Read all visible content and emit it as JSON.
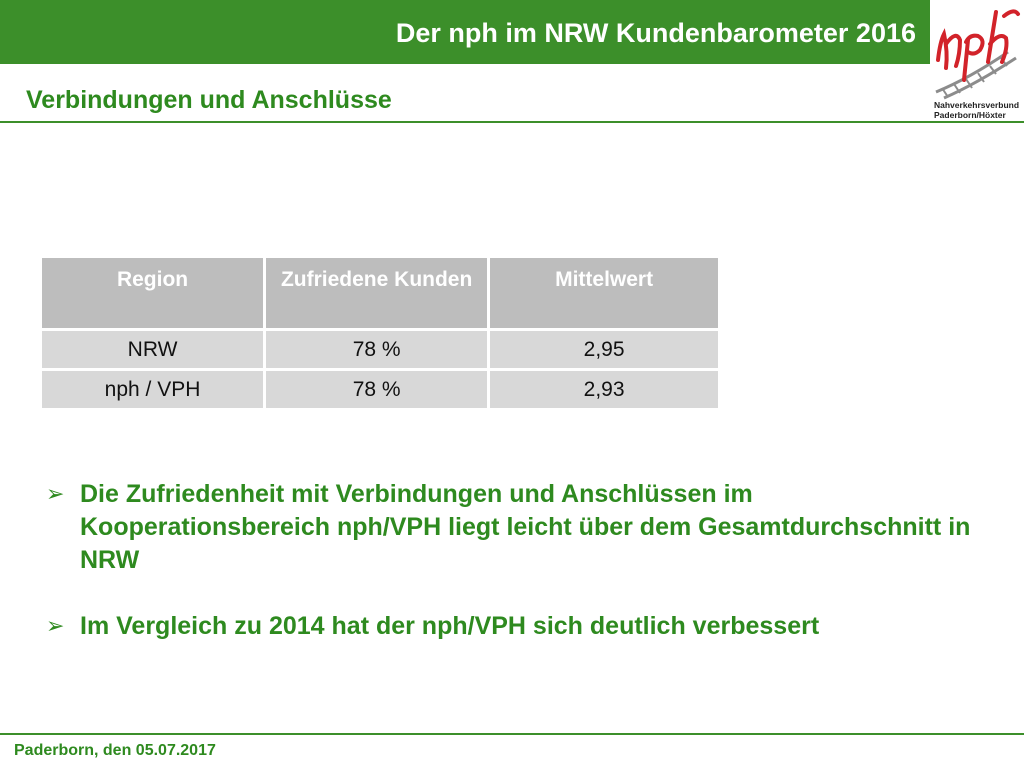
{
  "header": {
    "title": "Der nph im NRW Kundenbarometer 2016"
  },
  "logo": {
    "mark_text": "nph",
    "line1": "Nahverkehrsverbund",
    "line2": "Paderborn/Höxter",
    "colors": {
      "mark": "#d2232a",
      "rails": "#8c8c8c"
    }
  },
  "slide": {
    "subtitle": "Verbindungen und Anschlüsse"
  },
  "table": {
    "headers": [
      "Region",
      "Zufriedene Kunden",
      "Mittelwert"
    ],
    "rows": [
      [
        "NRW",
        "78 %",
        "2,95"
      ],
      [
        "nph / VPH",
        "78 %",
        "2,93"
      ]
    ]
  },
  "bullets": [
    "Die Zufriedenheit mit Verbindungen und Anschlüssen im Kooperationsbereich nph/VPH liegt leicht über dem Gesamtdurchschnitt in NRW",
    "Im Vergleich zu 2014 hat der nph/VPH sich deutlich verbessert"
  ],
  "footer": {
    "text": "Paderborn, den 05.07.2017"
  },
  "colors": {
    "brand_green": "#3c8f2a",
    "text_green": "#2e8a1f",
    "table_header": "#bdbdbd",
    "table_cell": "#d8d8d8"
  }
}
